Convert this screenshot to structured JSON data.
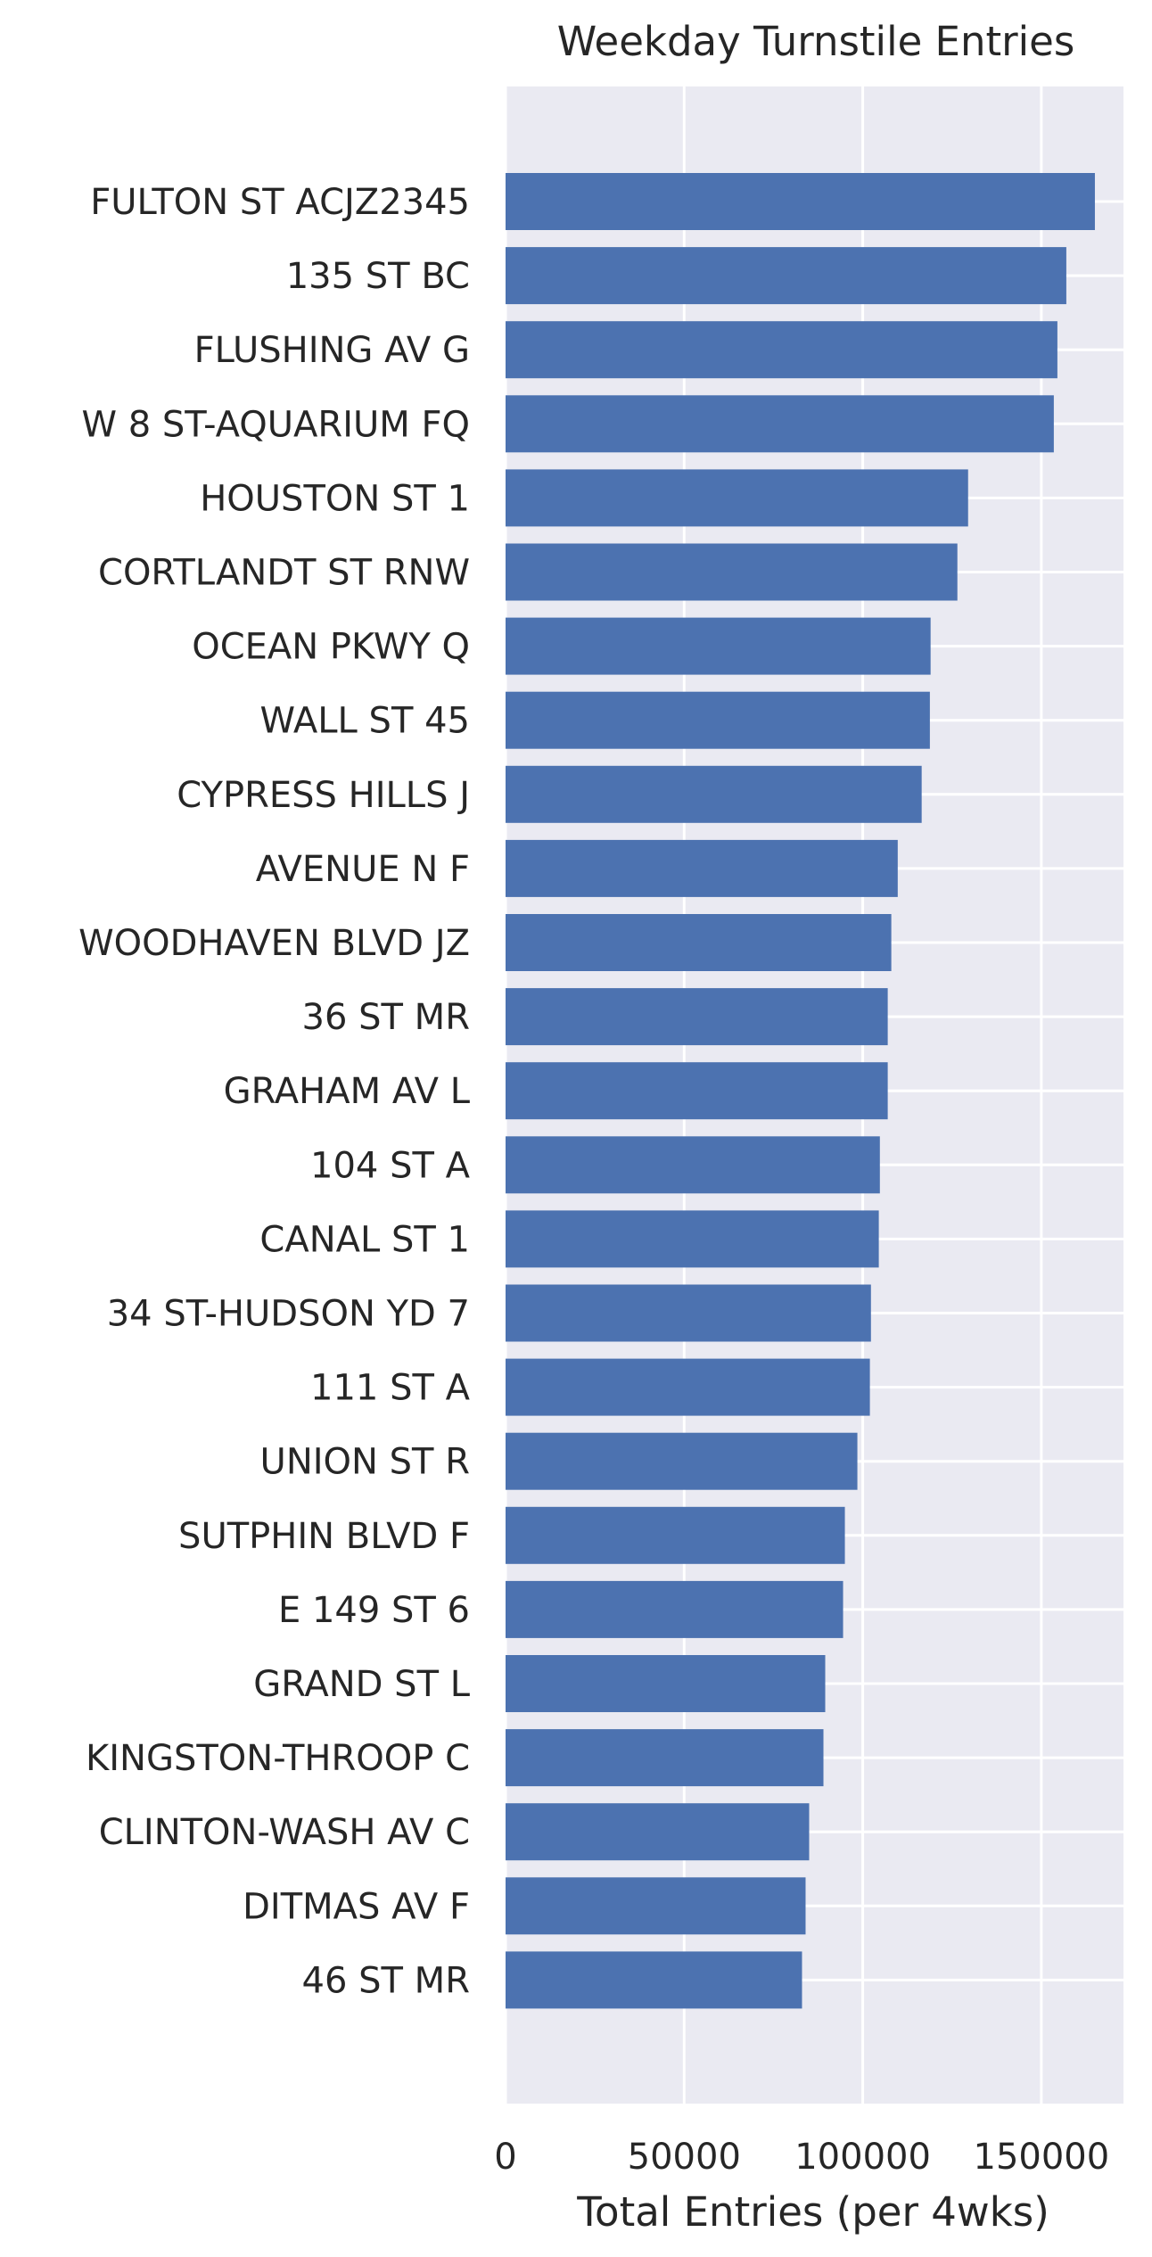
{
  "chart_data": {
    "type": "bar",
    "orientation": "horizontal",
    "title": "Weekday Turnstile Entries",
    "xlabel": "Total Entries (per 4wks)",
    "ylabel": "",
    "xlim": [
      0,
      173000
    ],
    "xticks": [
      0,
      50000,
      100000,
      150000
    ],
    "xtick_labels": [
      "0",
      "50000",
      "100000",
      "150000"
    ],
    "grid": true,
    "categories": [
      "FULTON ST ACJZ2345",
      "135 ST BC",
      "FLUSHING AV G",
      "W 8 ST-AQUARIUM FQ",
      "HOUSTON ST 1",
      "CORTLANDT ST RNW",
      "OCEAN PKWY Q",
      "WALL ST 45",
      "CYPRESS HILLS J",
      "AVENUE N F",
      "WOODHAVEN BLVD JZ",
      "36 ST MR",
      "GRAHAM AV L",
      "104 ST A",
      "CANAL ST 1",
      "34 ST-HUDSON YD 7",
      "111 ST A",
      "UNION ST R",
      "SUTPHIN BLVD F",
      "E 149 ST 6",
      "GRAND ST L",
      "KINGSTON-THROOP C",
      "CLINTON-WASH AV C",
      "DITMAS AV F",
      "46 ST MR"
    ],
    "values": [
      165000,
      157000,
      154500,
      153500,
      129500,
      126500,
      119000,
      118800,
      116500,
      109800,
      108000,
      107000,
      107000,
      104800,
      104500,
      102300,
      102000,
      98500,
      95000,
      94500,
      89500,
      89000,
      85000,
      84000,
      83000
    ],
    "colors": {
      "bar": "#4c72b0",
      "plot_background": "#eaeaf2",
      "grid": "#ffffff",
      "text": "#262626"
    }
  }
}
